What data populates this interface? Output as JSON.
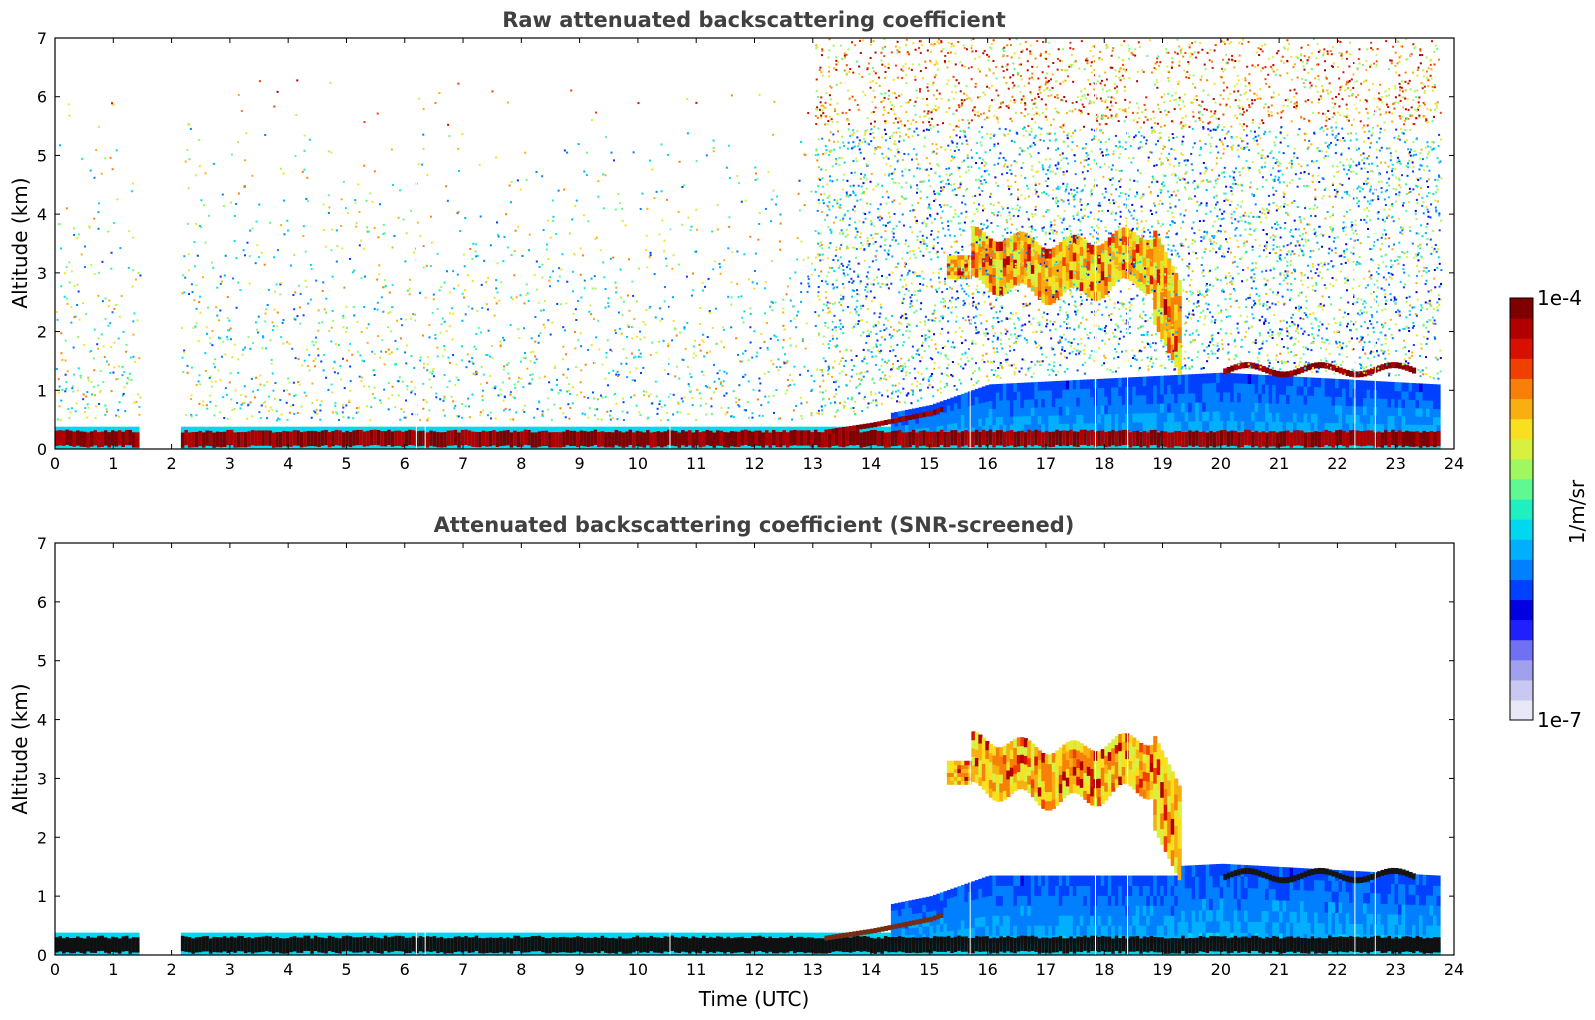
{
  "chart_data": [
    {
      "type": "heatmap",
      "title": "Raw attenuated backscattering coefficient",
      "xlabel": "",
      "ylabel": "Altitude (km)",
      "xlim": [
        0,
        24
      ],
      "ylim": [
        0,
        7
      ],
      "xticks": [
        "0",
        "1",
        "2",
        "3",
        "4",
        "5",
        "6",
        "7",
        "8",
        "9",
        "10",
        "11",
        "12",
        "13",
        "14",
        "15",
        "16",
        "17",
        "18",
        "19",
        "20",
        "21",
        "22",
        "23",
        "24"
      ],
      "yticks": [
        "0",
        "1",
        "2",
        "3",
        "4",
        "5",
        "6",
        "7"
      ],
      "data_gap_hours": [
        1.4,
        2.15
      ],
      "data_end_hour": 23.7,
      "features": {
        "boundary_layer_top_km": [
          [
            0,
            0.3
          ],
          [
            13,
            0.3
          ],
          [
            14,
            0.45
          ],
          [
            15,
            0.65
          ],
          [
            16,
            1.0
          ],
          [
            20,
            1.2
          ],
          [
            23.7,
            1.0
          ]
        ],
        "elevated_cloud_layer": {
          "start_hour": 15.3,
          "end_hour": 19.3,
          "base_km": 2.7,
          "top_km": 3.6
        },
        "low_cloud_layer": {
          "start_hour": 20.0,
          "end_hour": 23.3,
          "altitude_km": 1.3
        },
        "noise_region_top_km": 7
      }
    },
    {
      "type": "heatmap",
      "title": "Attenuated backscattering coefficient (SNR-screened)",
      "xlabel": "Time (UTC)",
      "ylabel": "Altitude (km)",
      "xlim": [
        0,
        24
      ],
      "ylim": [
        0,
        7
      ],
      "xticks": [
        "0",
        "1",
        "2",
        "3",
        "4",
        "5",
        "6",
        "7",
        "8",
        "9",
        "10",
        "11",
        "12",
        "13",
        "14",
        "15",
        "16",
        "17",
        "18",
        "19",
        "20",
        "21",
        "22",
        "23",
        "24"
      ],
      "yticks": [
        "0",
        "1",
        "2",
        "3",
        "4",
        "5",
        "6",
        "7"
      ],
      "data_gap_hours": [
        1.4,
        2.15
      ],
      "data_end_hour": 23.7
    }
  ],
  "colorbar": {
    "label": "1/m/sr",
    "max_label": "1e-4",
    "min_label": "1e-7",
    "colors": [
      "#e8e8f6",
      "#c8c8f0",
      "#a0a0ee",
      "#7070f4",
      "#2020ff",
      "#0000e0",
      "#0040ff",
      "#0080ff",
      "#00b0ff",
      "#00d8f0",
      "#20f0c0",
      "#60f890",
      "#a0f860",
      "#d8f040",
      "#f8e020",
      "#f8b010",
      "#f88008",
      "#f04000",
      "#d81000",
      "#b00000",
      "#800000"
    ]
  }
}
